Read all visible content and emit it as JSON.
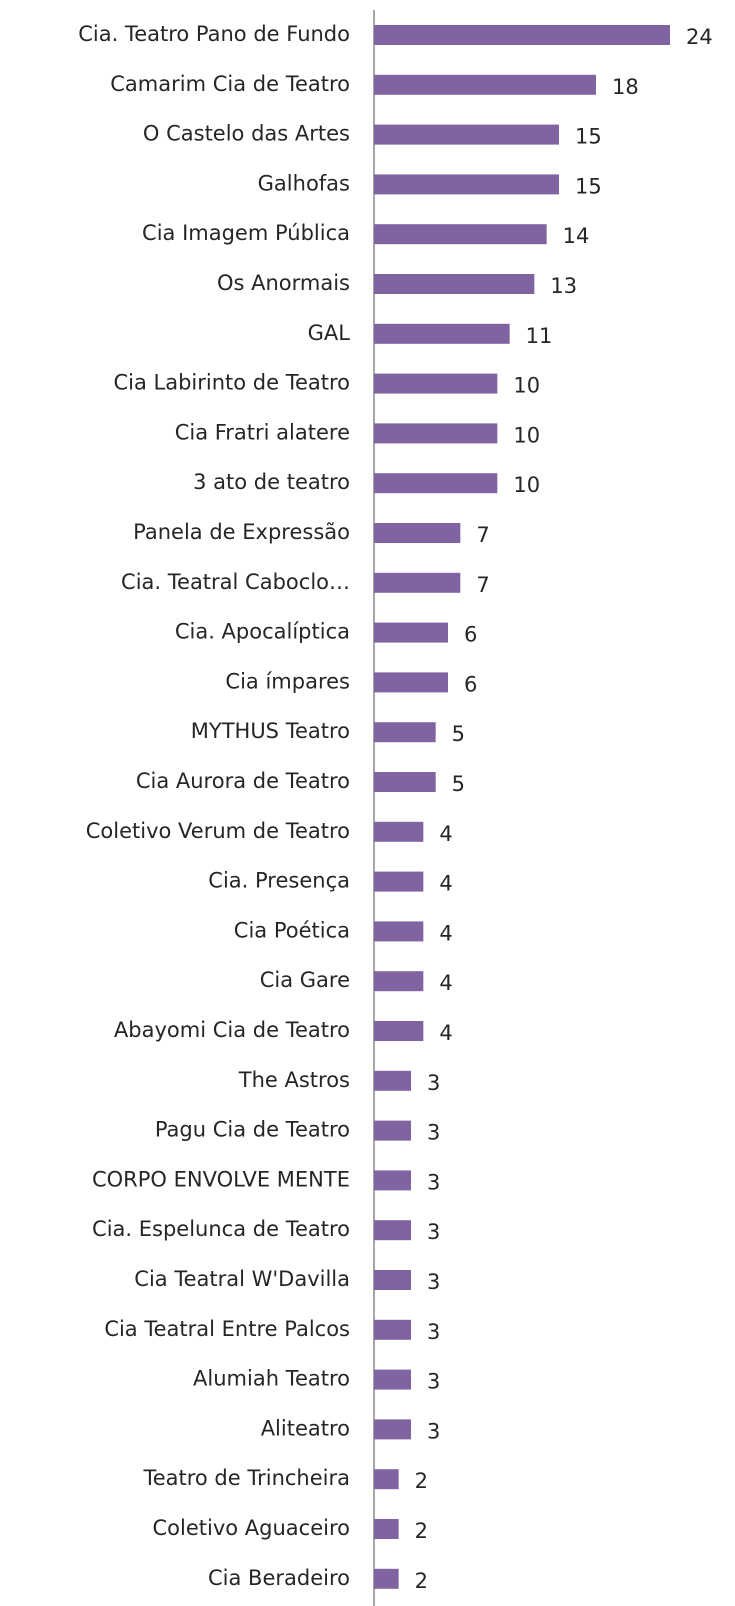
{
  "chart_data": {
    "type": "barh",
    "categories": [
      "Cia. Teatro Pano de Fundo",
      "Camarim Cia de Teatro",
      "O Castelo das Artes",
      "Galhofas",
      "Cia Imagem Pública",
      "Os Anormais",
      "GAL",
      "Cia Labirinto de Teatro",
      "Cia Fratri alatere",
      "3 ato de teatro",
      "Panela de Expressão",
      "Cia. Teatral Caboclo…",
      "Cia. Apocalíptica",
      "Cia ímpares",
      "MYTHUS Teatro",
      "Cia Aurora de Teatro",
      "Coletivo Verum de Teatro",
      "Cia. Presença",
      "Cia Poética",
      "Cia Gare",
      "Abayomi Cia de Teatro",
      "The Astros",
      "Pagu Cia de Teatro",
      "CORPO ENVOLVE MENTE",
      "Cia. Espelunca de Teatro",
      "Cia Teatral W'Davilla",
      "Cia Teatral Entre Palcos",
      "Alumiah Teatro",
      "Aliteatro",
      "Teatro de Trincheira",
      "Coletivo Aguaceiro",
      "Cia Beradeiro"
    ],
    "values": [
      24,
      18,
      15,
      15,
      14,
      13,
      11,
      10,
      10,
      10,
      7,
      7,
      6,
      6,
      5,
      5,
      4,
      4,
      4,
      4,
      4,
      3,
      3,
      3,
      3,
      3,
      3,
      3,
      3,
      2,
      2,
      2
    ],
    "color": "#8064a2",
    "xlim": [
      0,
      24
    ]
  }
}
